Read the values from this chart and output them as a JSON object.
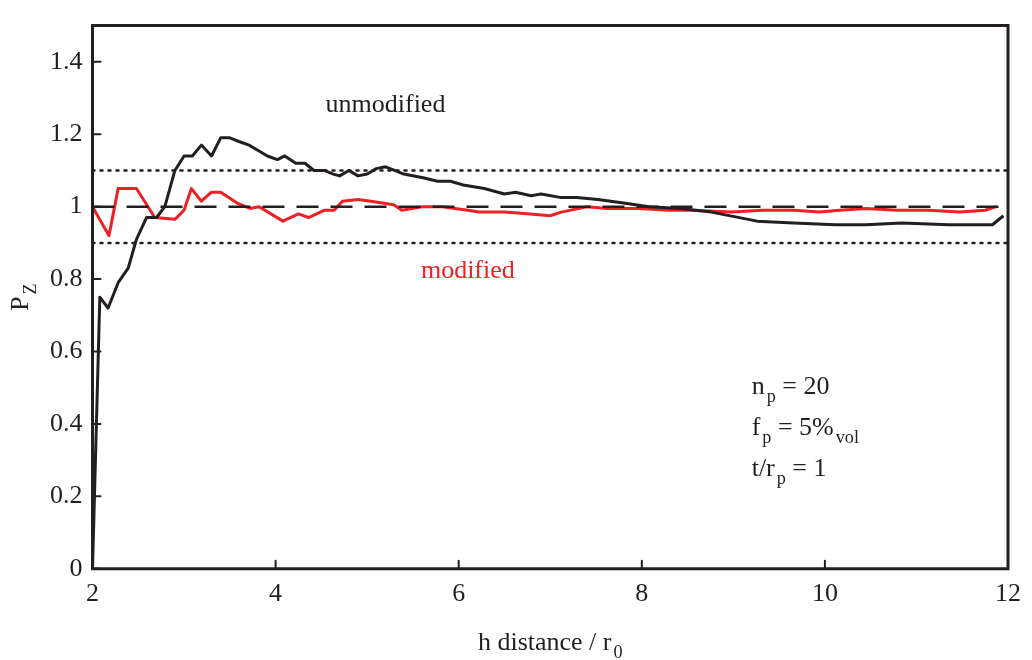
{
  "chart_data": {
    "type": "line",
    "xlabel": "h distance / r$_{0}$",
    "ylabel": "P$_{Z}$",
    "xlim": [
      2,
      12
    ],
    "xticks": [
      2,
      4,
      6,
      8,
      10,
      12
    ],
    "ylim": [
      0,
      1.5
    ],
    "yticks": [
      0,
      0.2,
      0.4,
      0.6,
      0.8,
      1,
      1.2,
      1.4
    ],
    "grid": false,
    "legend": false,
    "marker": "none",
    "line_style": "solid",
    "series": [
      {
        "name": "unmodified",
        "color": "#231f20",
        "x": [
          2,
          2.08,
          2.17,
          2.28,
          2.39,
          2.48,
          2.59,
          2.7,
          2.79,
          2.9,
          3.0,
          3.09,
          3.19,
          3.3,
          3.4,
          3.5,
          3.6,
          3.71,
          3.81,
          3.91,
          4.02,
          4.1,
          4.22,
          4.32,
          4.42,
          4.53,
          4.63,
          4.7,
          4.8,
          4.9,
          5.0,
          5.1,
          5.2,
          5.3,
          5.4,
          5.61,
          5.77,
          5.91,
          6.05,
          6.28,
          6.5,
          6.62,
          6.79,
          6.9,
          7.12,
          7.29,
          7.52,
          7.8,
          8.08,
          8.42,
          8.76,
          9.26,
          9.66,
          10.11,
          10.45,
          10.84,
          11.35,
          11.83,
          11.95
        ],
        "values": [
          0,
          0.75,
          0.72,
          0.79,
          0.83,
          0.91,
          0.97,
          0.97,
          1.0,
          1.1,
          1.14,
          1.14,
          1.17,
          1.14,
          1.19,
          1.19,
          1.18,
          1.17,
          1.155,
          1.14,
          1.13,
          1.14,
          1.12,
          1.12,
          1.1,
          1.1,
          1.09,
          1.085,
          1.1,
          1.085,
          1.09,
          1.105,
          1.11,
          1.1,
          1.09,
          1.08,
          1.07,
          1.07,
          1.06,
          1.05,
          1.035,
          1.04,
          1.03,
          1.035,
          1.025,
          1.025,
          1.02,
          1.01,
          1.0,
          0.995,
          0.985,
          0.96,
          0.955,
          0.95,
          0.95,
          0.955,
          0.95,
          0.95,
          0.975
        ]
      },
      {
        "name": "modified",
        "color": "#ed2024",
        "x": [
          2,
          2.18,
          2.28,
          2.48,
          2.68,
          2.9,
          3.0,
          3.08,
          3.19,
          3.3,
          3.4,
          3.58,
          3.72,
          3.82,
          4.08,
          4.25,
          4.36,
          4.53,
          4.64,
          4.73,
          4.9,
          5.04,
          5.29,
          5.38,
          5.6,
          5.82,
          6.1,
          6.22,
          6.5,
          6.78,
          7.0,
          7.12,
          7.4,
          7.62,
          7.96,
          8.3,
          8.53,
          8.98,
          9.32,
          9.66,
          9.94,
          10.16,
          10.45,
          10.79,
          11.13,
          11.47,
          11.75,
          11.87
        ],
        "values": [
          1.0,
          0.92,
          1.05,
          1.05,
          0.97,
          0.965,
          0.99,
          1.05,
          1.015,
          1.04,
          1.04,
          1.01,
          0.995,
          1.0,
          0.96,
          0.98,
          0.97,
          0.99,
          0.99,
          1.015,
          1.02,
          1.015,
          1.005,
          0.99,
          1.0,
          1.0,
          0.99,
          0.985,
          0.985,
          0.98,
          0.975,
          0.985,
          1.0,
          0.995,
          0.995,
          0.99,
          0.99,
          0.985,
          0.99,
          0.99,
          0.985,
          0.99,
          0.995,
          0.99,
          0.99,
          0.985,
          0.99,
          1.0
        ]
      }
    ],
    "ref_lines": [
      {
        "axis": "y",
        "value": 1,
        "color": "#231f20",
        "line_style": "dashed"
      },
      {
        "axis": "y",
        "value": 1.1,
        "color": "#231f20",
        "line_style": "dotted"
      },
      {
        "axis": "y",
        "value": 0.9,
        "color": "#231f20",
        "line_style": "dotted"
      }
    ],
    "annotations": [
      "n$_{p}$ = 20",
      "f$_{p}$ = 5%$_{vol}$",
      "t/r$_{p}$ = 1"
    ]
  }
}
